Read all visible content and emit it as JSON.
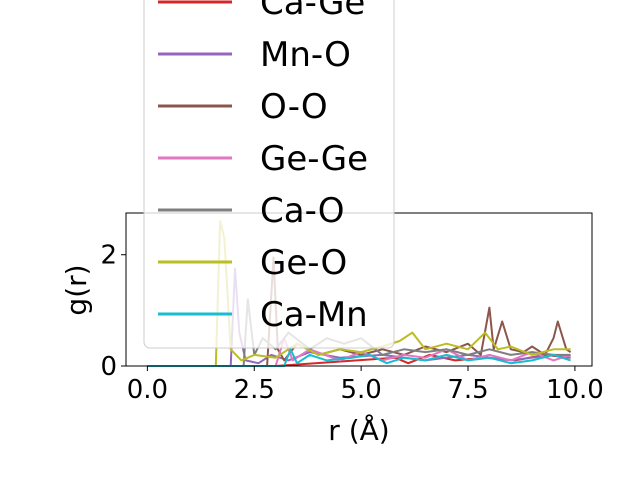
{
  "chart_data": {
    "type": "line",
    "xlabel": "r (Å)",
    "ylabel": "g(r)",
    "xlim": [
      -0.5,
      10.4
    ],
    "ylim": [
      0,
      2.75
    ],
    "xticks": [
      0.0,
      2.5,
      5.0,
      7.5,
      10.0
    ],
    "xtick_labels": [
      "0.0",
      "2.5",
      "5.0",
      "7.5",
      "10.0"
    ],
    "yticks": [
      0,
      2
    ],
    "ytick_labels": [
      "0",
      "2"
    ],
    "grid": false,
    "legend_placement": "upper-center, overlapping axes",
    "series": [
      {
        "name": "Ca-Ge",
        "color": "#d62728",
        "x": [
          0,
          3.0,
          5.8,
          6.1,
          6.6,
          7.2,
          7.9,
          8.6,
          9.3,
          9.9
        ],
        "y": [
          0,
          0,
          0.15,
          0.05,
          0.2,
          0.1,
          0.15,
          0.1,
          0.2,
          0.15
        ]
      },
      {
        "name": "Mn-O",
        "color": "#9467bd",
        "x": [
          0,
          1.95,
          2.05,
          2.15,
          2.3,
          2.6,
          2.9,
          3.3,
          3.8,
          4.5,
          5.5,
          6.5,
          7.5,
          8.5,
          9.5,
          9.9
        ],
        "y": [
          0,
          0,
          1.75,
          0.6,
          0.1,
          0.05,
          0.2,
          0.1,
          0.25,
          0.15,
          0.2,
          0.1,
          0.2,
          0.1,
          0.2,
          0.15
        ]
      },
      {
        "name": "O-O",
        "color": "#8c564b",
        "x": [
          0,
          2.8,
          2.95,
          3.05,
          3.2,
          3.5,
          4.0,
          4.5,
          5.0,
          5.5,
          6.0,
          6.5,
          7.0,
          7.5,
          7.8,
          8.0,
          8.1,
          8.3,
          8.5,
          8.8,
          9.0,
          9.3,
          9.5,
          9.6,
          9.8,
          9.9
        ],
        "y": [
          0,
          0,
          1.95,
          0.3,
          0.1,
          0.4,
          0.2,
          0.3,
          0.2,
          0.3,
          0.2,
          0.35,
          0.25,
          0.4,
          0.2,
          1.05,
          0.3,
          0.8,
          0.3,
          0.25,
          0.35,
          0.2,
          0.5,
          0.8,
          0.3,
          0.25
        ]
      },
      {
        "name": "Ge-Ge",
        "color": "#e377c2",
        "x": [
          0,
          3.0,
          3.2,
          3.4,
          3.8,
          4.5,
          5.0,
          5.5,
          6.0,
          6.5,
          7.0,
          7.5,
          8.0,
          8.5,
          9.0,
          9.5,
          9.9
        ],
        "y": [
          0,
          0,
          0.5,
          0.1,
          0.3,
          0.1,
          0.25,
          0.1,
          0.2,
          0.15,
          0.3,
          0.1,
          0.2,
          0.1,
          0.25,
          0.1,
          0.2
        ]
      },
      {
        "name": "Ca-O",
        "color": "#7f7f7f",
        "x": [
          0,
          2.25,
          2.35,
          2.5,
          2.7,
          3.0,
          3.3,
          3.8,
          4.2,
          4.6,
          5.0,
          5.5,
          6.0,
          6.5,
          7.0,
          7.5,
          8.0,
          8.5,
          9.0,
          9.5,
          9.9
        ],
        "y": [
          0,
          0,
          1.2,
          0.2,
          0.5,
          0.3,
          0.6,
          0.3,
          0.5,
          0.4,
          0.5,
          0.2,
          0.3,
          0.25,
          0.3,
          0.2,
          0.3,
          0.2,
          0.25,
          0.2,
          0.2
        ]
      },
      {
        "name": "Ge-O",
        "color": "#bcbd22",
        "x": [
          0,
          1.6,
          1.7,
          1.8,
          1.95,
          2.2,
          2.5,
          3.0,
          3.5,
          4.0,
          4.5,
          5.0,
          5.5,
          5.9,
          6.2,
          6.5,
          7.0,
          7.5,
          7.9,
          8.2,
          8.5,
          9.0,
          9.5,
          9.9
        ],
        "y": [
          0,
          0,
          2.6,
          2.3,
          0.3,
          0.1,
          0.2,
          0.15,
          0.4,
          0.2,
          0.3,
          0.25,
          0.35,
          0.45,
          0.6,
          0.3,
          0.4,
          0.3,
          0.6,
          0.3,
          0.35,
          0.2,
          0.3,
          0.3
        ]
      },
      {
        "name": "Ca-Mn",
        "color": "#17becf",
        "x": [
          0,
          3.2,
          3.35,
          3.5,
          3.8,
          4.2,
          4.8,
          5.2,
          5.6,
          6.0,
          6.5,
          7.0,
          7.5,
          8.0,
          8.5,
          9.0,
          9.5,
          9.9
        ],
        "y": [
          0,
          0,
          0.3,
          0.05,
          0.2,
          0.1,
          0.15,
          0.2,
          0.05,
          0.15,
          0.1,
          0.2,
          0.1,
          0.15,
          0.05,
          0.1,
          0.2,
          0.1
        ]
      }
    ]
  }
}
